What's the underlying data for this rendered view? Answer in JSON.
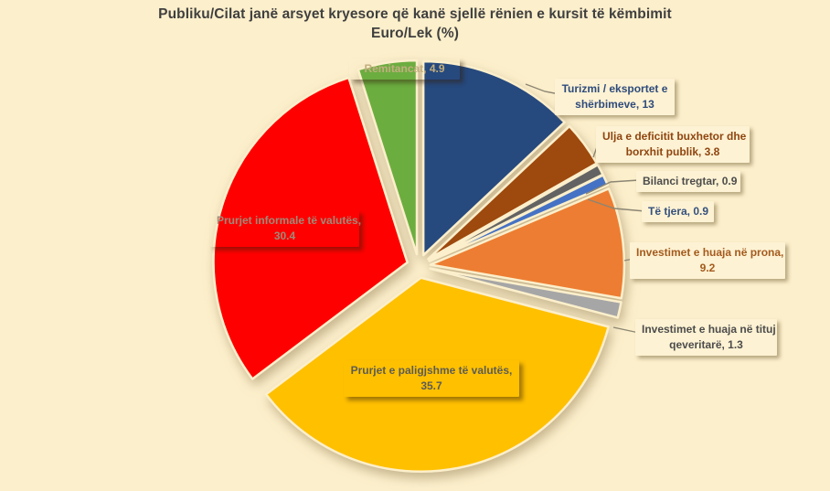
{
  "title": {
    "line1": "Publiku/Cilat janë arsyet kryesore që kanë sjellë rënien e kursit të këmbimit",
    "line2": "Euro/Lek (%)",
    "color": "#3F3F3F"
  },
  "background_color": "#FCEFCB",
  "labels": {
    "turizmi": {
      "line1": "Turizmi / eksportet e",
      "line2": "shërbimeve, 13",
      "color": "#2E4B7C"
    },
    "ulja": {
      "line1": "Ulja e deficitit buxhetor dhe",
      "line2": "borxhit publik, 3.8",
      "color": "#8F4510"
    },
    "bilanci": {
      "line1": "Bilanci tregtar, 0.9",
      "line2": "",
      "color": "#4C4C4C"
    },
    "tetjera": {
      "line1": "Të tjera, 0.9",
      "line2": "",
      "color": "#35507E"
    },
    "prona": {
      "line1": "Investimet e huaja në prona,",
      "line2": "9.2",
      "color": "#A45A1E"
    },
    "tituj": {
      "line1": "Investimet e huaja në tituj",
      "line2": "qeveritarë, 1.3",
      "color": "#4C4C4C"
    },
    "remitancat": {
      "line1": "Remitancat, 4.9",
      "line2": "",
      "color": "#C2AE7E"
    },
    "informale": {
      "line1": "Prurjet informale të valutës,",
      "line2": "30.4",
      "color": "#9D8B79"
    },
    "paligjshme": {
      "line1": "Prurjet e paligjshme të valutës,",
      "line2": "35.7",
      "color": "#5C5C54"
    }
  },
  "chart_data": {
    "type": "pie",
    "title": "Publiku/Cilat janë arsyet kryesore që kanë sjellë rënien e kursit të këmbimit Euro/Lek (%)",
    "unit": "percent",
    "order": "clockwise-from-top",
    "legend_position": "none",
    "exploded": true,
    "slices": [
      {
        "key": "turizmi",
        "label": "Turizmi / eksportet e shërbimeve",
        "value": 13,
        "color": "#27497E"
      },
      {
        "key": "ulja",
        "label": "Ulja e deficitit buxhetor dhe borxhit publik",
        "value": 3.8,
        "color": "#9E4A10"
      },
      {
        "key": "bilanci",
        "label": "Bilanci tregtar",
        "value": 0.9,
        "color": "#636363"
      },
      {
        "key": "tetjera",
        "label": "Të tjera",
        "value": 0.9,
        "color": "#4472C4"
      },
      {
        "key": "prona",
        "label": "Investimet e huaja në prona",
        "value": 9.2,
        "color": "#ED7D31"
      },
      {
        "key": "tituj",
        "label": "Investimet e huaja në tituj qeveritarë",
        "value": 1.3,
        "color": "#A6A6A6"
      },
      {
        "key": "paligjshme",
        "label": "Prurjet e paligjshme të valutës",
        "value": 35.7,
        "color": "#FFC000"
      },
      {
        "key": "informale",
        "label": "Prurjet informale të valutës",
        "value": 30.4,
        "color": "#FF0000"
      },
      {
        "key": "remitancat",
        "label": "Remitancat",
        "value": 4.9,
        "color": "#6CAD41"
      }
    ]
  }
}
